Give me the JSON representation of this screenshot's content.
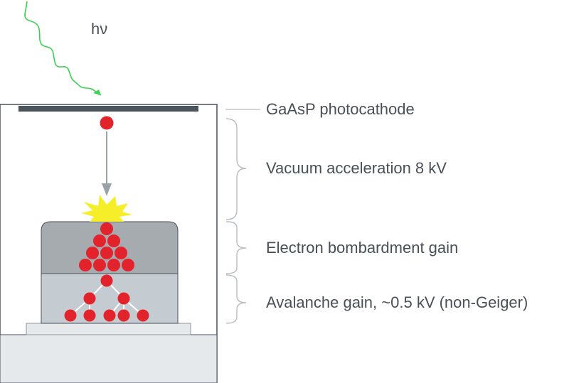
{
  "photon_label": "hν",
  "labels": {
    "photocathode": "GaAsP photocathode",
    "vacuum": "Vacuum acceleration 8 kV",
    "bombardment": "Electron bombardment gain",
    "avalanche": "Avalanche gain, ~0.5 kV (non-Geiger)"
  },
  "colors": {
    "photon": "#39d353",
    "electron": "#e3232b",
    "impact_flash": "#f7ee2a",
    "text": "#4a5058",
    "cathode": "#4c545c",
    "housing_border": "#4a5058",
    "bombardment_layer": "#a6abb0",
    "avalanche_layer": "#c4ccd2",
    "base": "#e6e9eb"
  }
}
